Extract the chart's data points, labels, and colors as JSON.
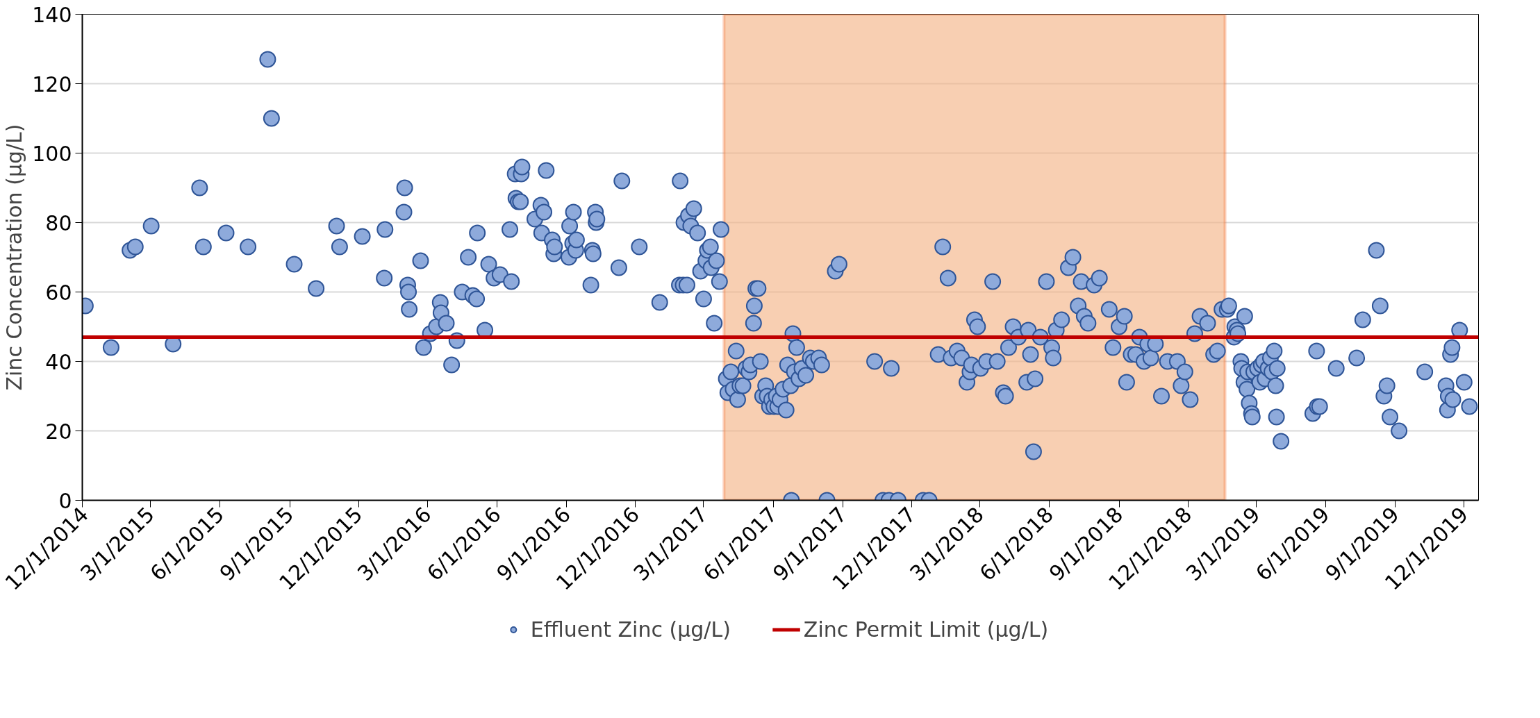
{
  "chart_data": {
    "type": "scatter",
    "ylabel": "Zinc Concentration (µg/L)",
    "series": [
      {
        "name": "Effluent Zinc (µg/L)",
        "color": "#8eaadb",
        "x": [
          "2014-12-05",
          "2015-01-08",
          "2015-02-02",
          "2015-02-09",
          "2015-03-02",
          "2015-03-31",
          "2015-05-05",
          "2015-05-10",
          "2015-06-09",
          "2015-07-08",
          "2015-08-03",
          "2015-08-08",
          "2015-09-07",
          "2015-10-06",
          "2015-11-02",
          "2015-11-06",
          "2015-12-06",
          "2016-01-04",
          "2016-01-05",
          "2016-01-30",
          "2016-01-31",
          "2016-02-04",
          "2016-02-05",
          "2016-02-06",
          "2016-02-21",
          "2016-02-25",
          "2016-03-05",
          "2016-03-13",
          "2016-03-18",
          "2016-03-19",
          "2016-03-26",
          "2016-04-02",
          "2016-04-09",
          "2016-04-16",
          "2016-04-24",
          "2016-04-30",
          "2016-05-05",
          "2016-05-06",
          "2016-05-16",
          "2016-05-21",
          "2016-05-28",
          "2016-06-05",
          "2016-06-18",
          "2016-06-20",
          "2016-06-25",
          "2016-06-26",
          "2016-06-29",
          "2016-07-03",
          "2016-07-04",
          "2016-07-02",
          "2016-07-21",
          "2016-07-29",
          "2016-07-30",
          "2016-08-02",
          "2016-08-05",
          "2016-08-13",
          "2016-08-15",
          "2016-08-16",
          "2016-09-04",
          "2016-09-05",
          "2016-09-09",
          "2016-09-10",
          "2016-09-13",
          "2016-09-14",
          "2016-10-03",
          "2016-10-05",
          "2016-10-06",
          "2016-10-09",
          "2016-10-10",
          "2016-10-11",
          "2016-11-09",
          "2016-11-13",
          "2016-12-06",
          "2017-01-02",
          "2017-01-28",
          "2017-01-29",
          "2017-02-02",
          "2017-02-07",
          "2017-02-03",
          "2017-02-09",
          "2017-02-12",
          "2017-02-16",
          "2017-02-21",
          "2017-02-25",
          "2017-03-01",
          "2017-03-04",
          "2017-03-06",
          "2017-03-10",
          "2017-03-11",
          "2017-03-15",
          "2017-03-18",
          "2017-03-22",
          "2017-03-24",
          "2017-03-31",
          "2017-04-02",
          "2017-04-06",
          "2017-04-09",
          "2017-04-13",
          "2017-04-15",
          "2017-04-18",
          "2017-04-22",
          "2017-04-26",
          "2017-04-30",
          "2017-05-02",
          "2017-05-06",
          "2017-05-07",
          "2017-05-09",
          "2017-05-12",
          "2017-05-15",
          "2017-05-18",
          "2017-05-22",
          "2017-05-24",
          "2017-05-27",
          "2017-05-30",
          "2017-06-02",
          "2017-06-05",
          "2017-06-07",
          "2017-06-10",
          "2017-06-14",
          "2017-06-18",
          "2017-06-20",
          "2017-06-24",
          "2017-06-27",
          "2017-06-29",
          "2017-07-02",
          "2017-07-05",
          "2017-07-09",
          "2017-07-14",
          "2017-07-20",
          "2017-07-24",
          "2017-07-31",
          "2017-08-04",
          "2017-06-25",
          "2017-08-11",
          "2017-08-22",
          "2017-08-27",
          "2017-10-13",
          "2017-11-04",
          "2017-10-24",
          "2017-11-01",
          "2017-11-13",
          "2017-12-16",
          "2017-12-24",
          "2018-01-05",
          "2018-01-11",
          "2018-01-18",
          "2018-01-22",
          "2018-01-30",
          "2018-02-05",
          "2018-02-12",
          "2018-02-16",
          "2018-02-18",
          "2018-02-22",
          "2018-02-26",
          "2018-03-02",
          "2018-03-10",
          "2018-03-18",
          "2018-03-24",
          "2018-04-01",
          "2018-04-04",
          "2018-04-08",
          "2018-04-14",
          "2018-04-21",
          "2018-05-02",
          "2018-05-04",
          "2018-05-07",
          "2018-05-11",
          "2018-05-13",
          "2018-05-20",
          "2018-05-28",
          "2018-06-04",
          "2018-06-06",
          "2018-06-10",
          "2018-06-17",
          "2018-06-26",
          "2018-07-02",
          "2018-07-09",
          "2018-07-13",
          "2018-07-17",
          "2018-07-22",
          "2018-07-30",
          "2018-08-06",
          "2018-08-19",
          "2018-08-24",
          "2018-09-01",
          "2018-09-08",
          "2018-09-11",
          "2018-09-17",
          "2018-09-23",
          "2018-09-28",
          "2018-10-04",
          "2018-10-09",
          "2018-10-13",
          "2018-10-19",
          "2018-10-27",
          "2018-11-04",
          "2018-11-17",
          "2018-11-22",
          "2018-11-27",
          "2018-12-04",
          "2018-12-10",
          "2018-12-17",
          "2018-12-27",
          "2019-01-04",
          "2019-01-09",
          "2019-01-15",
          "2019-01-22",
          "2019-01-24",
          "2019-01-31",
          "2019-02-01",
          "2019-02-04",
          "2019-02-05",
          "2019-02-14",
          "2019-02-09",
          "2019-02-10",
          "2019-02-13",
          "2019-02-17",
          "2019-02-18",
          "2019-02-20",
          "2019-02-23",
          "2019-02-24",
          "2019-02-26",
          "2019-03-03",
          "2019-03-06",
          "2019-03-08",
          "2019-03-11",
          "2019-03-13",
          "2019-03-17",
          "2019-03-20",
          "2019-03-22",
          "2019-03-25",
          "2019-03-27",
          "2019-03-29",
          "2019-03-28",
          "2019-04-03",
          "2019-05-15",
          "2019-05-21",
          "2019-05-24",
          "2019-05-20",
          "2019-06-15",
          "2019-07-12",
          "2019-07-20",
          "2019-08-07",
          "2019-08-12",
          "2019-08-17",
          "2019-08-21",
          "2019-08-25",
          "2019-09-06",
          "2019-10-10",
          "2019-11-07",
          "2019-11-09",
          "2019-11-10",
          "2019-11-13",
          "2019-11-15",
          "2019-11-16",
          "2019-11-25",
          "2019-12-01",
          "2019-12-08"
        ],
        "values": [
          56,
          44,
          72,
          73,
          79,
          45,
          90,
          73,
          77,
          73,
          127,
          110,
          68,
          61,
          79,
          73,
          76,
          64,
          78,
          83,
          90,
          62,
          60,
          55,
          69,
          44,
          48,
          50,
          57,
          54,
          51,
          39,
          46,
          60,
          70,
          59,
          58,
          77,
          49,
          68,
          64,
          65,
          78,
          63,
          94,
          87,
          86,
          94,
          96,
          86,
          81,
          85,
          77,
          83,
          95,
          75,
          71,
          73,
          70,
          79,
          74,
          83,
          72,
          75,
          62,
          72,
          71,
          83,
          80,
          81,
          67,
          92,
          73,
          57,
          62,
          92,
          62,
          62,
          80,
          82,
          79,
          84,
          77,
          66,
          58,
          69,
          72,
          73,
          67,
          51,
          69,
          63,
          78,
          35,
          31,
          37,
          32,
          43,
          29,
          33,
          33,
          38,
          37,
          39,
          51,
          56,
          61,
          61,
          40,
          30,
          33,
          30,
          27,
          29,
          27,
          30,
          27,
          29,
          32,
          26,
          39,
          33,
          48,
          37,
          44,
          35,
          38,
          36,
          41,
          40,
          41,
          39,
          0,
          0,
          66,
          68,
          40,
          38,
          0,
          0,
          0,
          0,
          0,
          42,
          73,
          64,
          41,
          43,
          41,
          34,
          37,
          39,
          52,
          50,
          38,
          40,
          63,
          40,
          31,
          30,
          44,
          50,
          47,
          34,
          49,
          42,
          14,
          35,
          47,
          63,
          44,
          41,
          49,
          52,
          67,
          70,
          56,
          63,
          53,
          51,
          62,
          64,
          55,
          44,
          50,
          53,
          34,
          42,
          42,
          47,
          40,
          45,
          41,
          45,
          30,
          40,
          40,
          33,
          37,
          29,
          48,
          53,
          51,
          42,
          43,
          55,
          55,
          56,
          47,
          50,
          49,
          48,
          53,
          40,
          38,
          34,
          32,
          37,
          28,
          25,
          24,
          37,
          38,
          34,
          39,
          40,
          35,
          38,
          41,
          37,
          43,
          33,
          38,
          24,
          17,
          25,
          27,
          27,
          43,
          38,
          41,
          52,
          72,
          56,
          30,
          33,
          24,
          20,
          37,
          33,
          26,
          30,
          42,
          44,
          29,
          49,
          34,
          27
        ]
      }
    ],
    "xlim": [
      "2014-12-01",
      "2019-12-20"
    ],
    "xticks": [
      {
        "value": "2014-12-01",
        "label": "12/1/2014"
      },
      {
        "value": "2015-03-01",
        "label": "3/1/2015"
      },
      {
        "value": "2015-06-01",
        "label": "6/1/2015"
      },
      {
        "value": "2015-09-01",
        "label": "9/1/2015"
      },
      {
        "value": "2015-12-01",
        "label": "12/1/2015"
      },
      {
        "value": "2016-03-01",
        "label": "3/1/2016"
      },
      {
        "value": "2016-06-01",
        "label": "6/1/2016"
      },
      {
        "value": "2016-09-01",
        "label": "9/1/2016"
      },
      {
        "value": "2016-12-01",
        "label": "12/1/2016"
      },
      {
        "value": "2017-03-01",
        "label": "3/1/2017"
      },
      {
        "value": "2017-06-01",
        "label": "6/1/2017"
      },
      {
        "value": "2017-09-01",
        "label": "9/1/2017"
      },
      {
        "value": "2017-12-01",
        "label": "12/1/2017"
      },
      {
        "value": "2018-03-01",
        "label": "3/1/2018"
      },
      {
        "value": "2018-06-01",
        "label": "6/1/2018"
      },
      {
        "value": "2018-09-01",
        "label": "9/1/2018"
      },
      {
        "value": "2018-12-01",
        "label": "12/1/2018"
      },
      {
        "value": "2019-03-01",
        "label": "3/1/2019"
      },
      {
        "value": "2019-06-01",
        "label": "6/1/2019"
      },
      {
        "value": "2019-09-01",
        "label": "9/1/2019"
      },
      {
        "value": "2019-12-01",
        "label": "12/1/2019"
      }
    ],
    "ylim": [
      0,
      140
    ],
    "yticks": [
      0,
      20,
      40,
      60,
      80,
      100,
      120,
      140
    ],
    "ref_lines": [
      {
        "axis": "y",
        "value": 47,
        "label": "Zinc Permit Limit (µg/L)",
        "color": "#c00000",
        "line_style": "solid"
      }
    ],
    "bands": [
      {
        "axis": "x",
        "from": "2017-03-28",
        "to": "2019-01-19",
        "color": "#f4b183"
      }
    ],
    "grid": "y",
    "legend": "bottom",
    "marker": "circle"
  }
}
